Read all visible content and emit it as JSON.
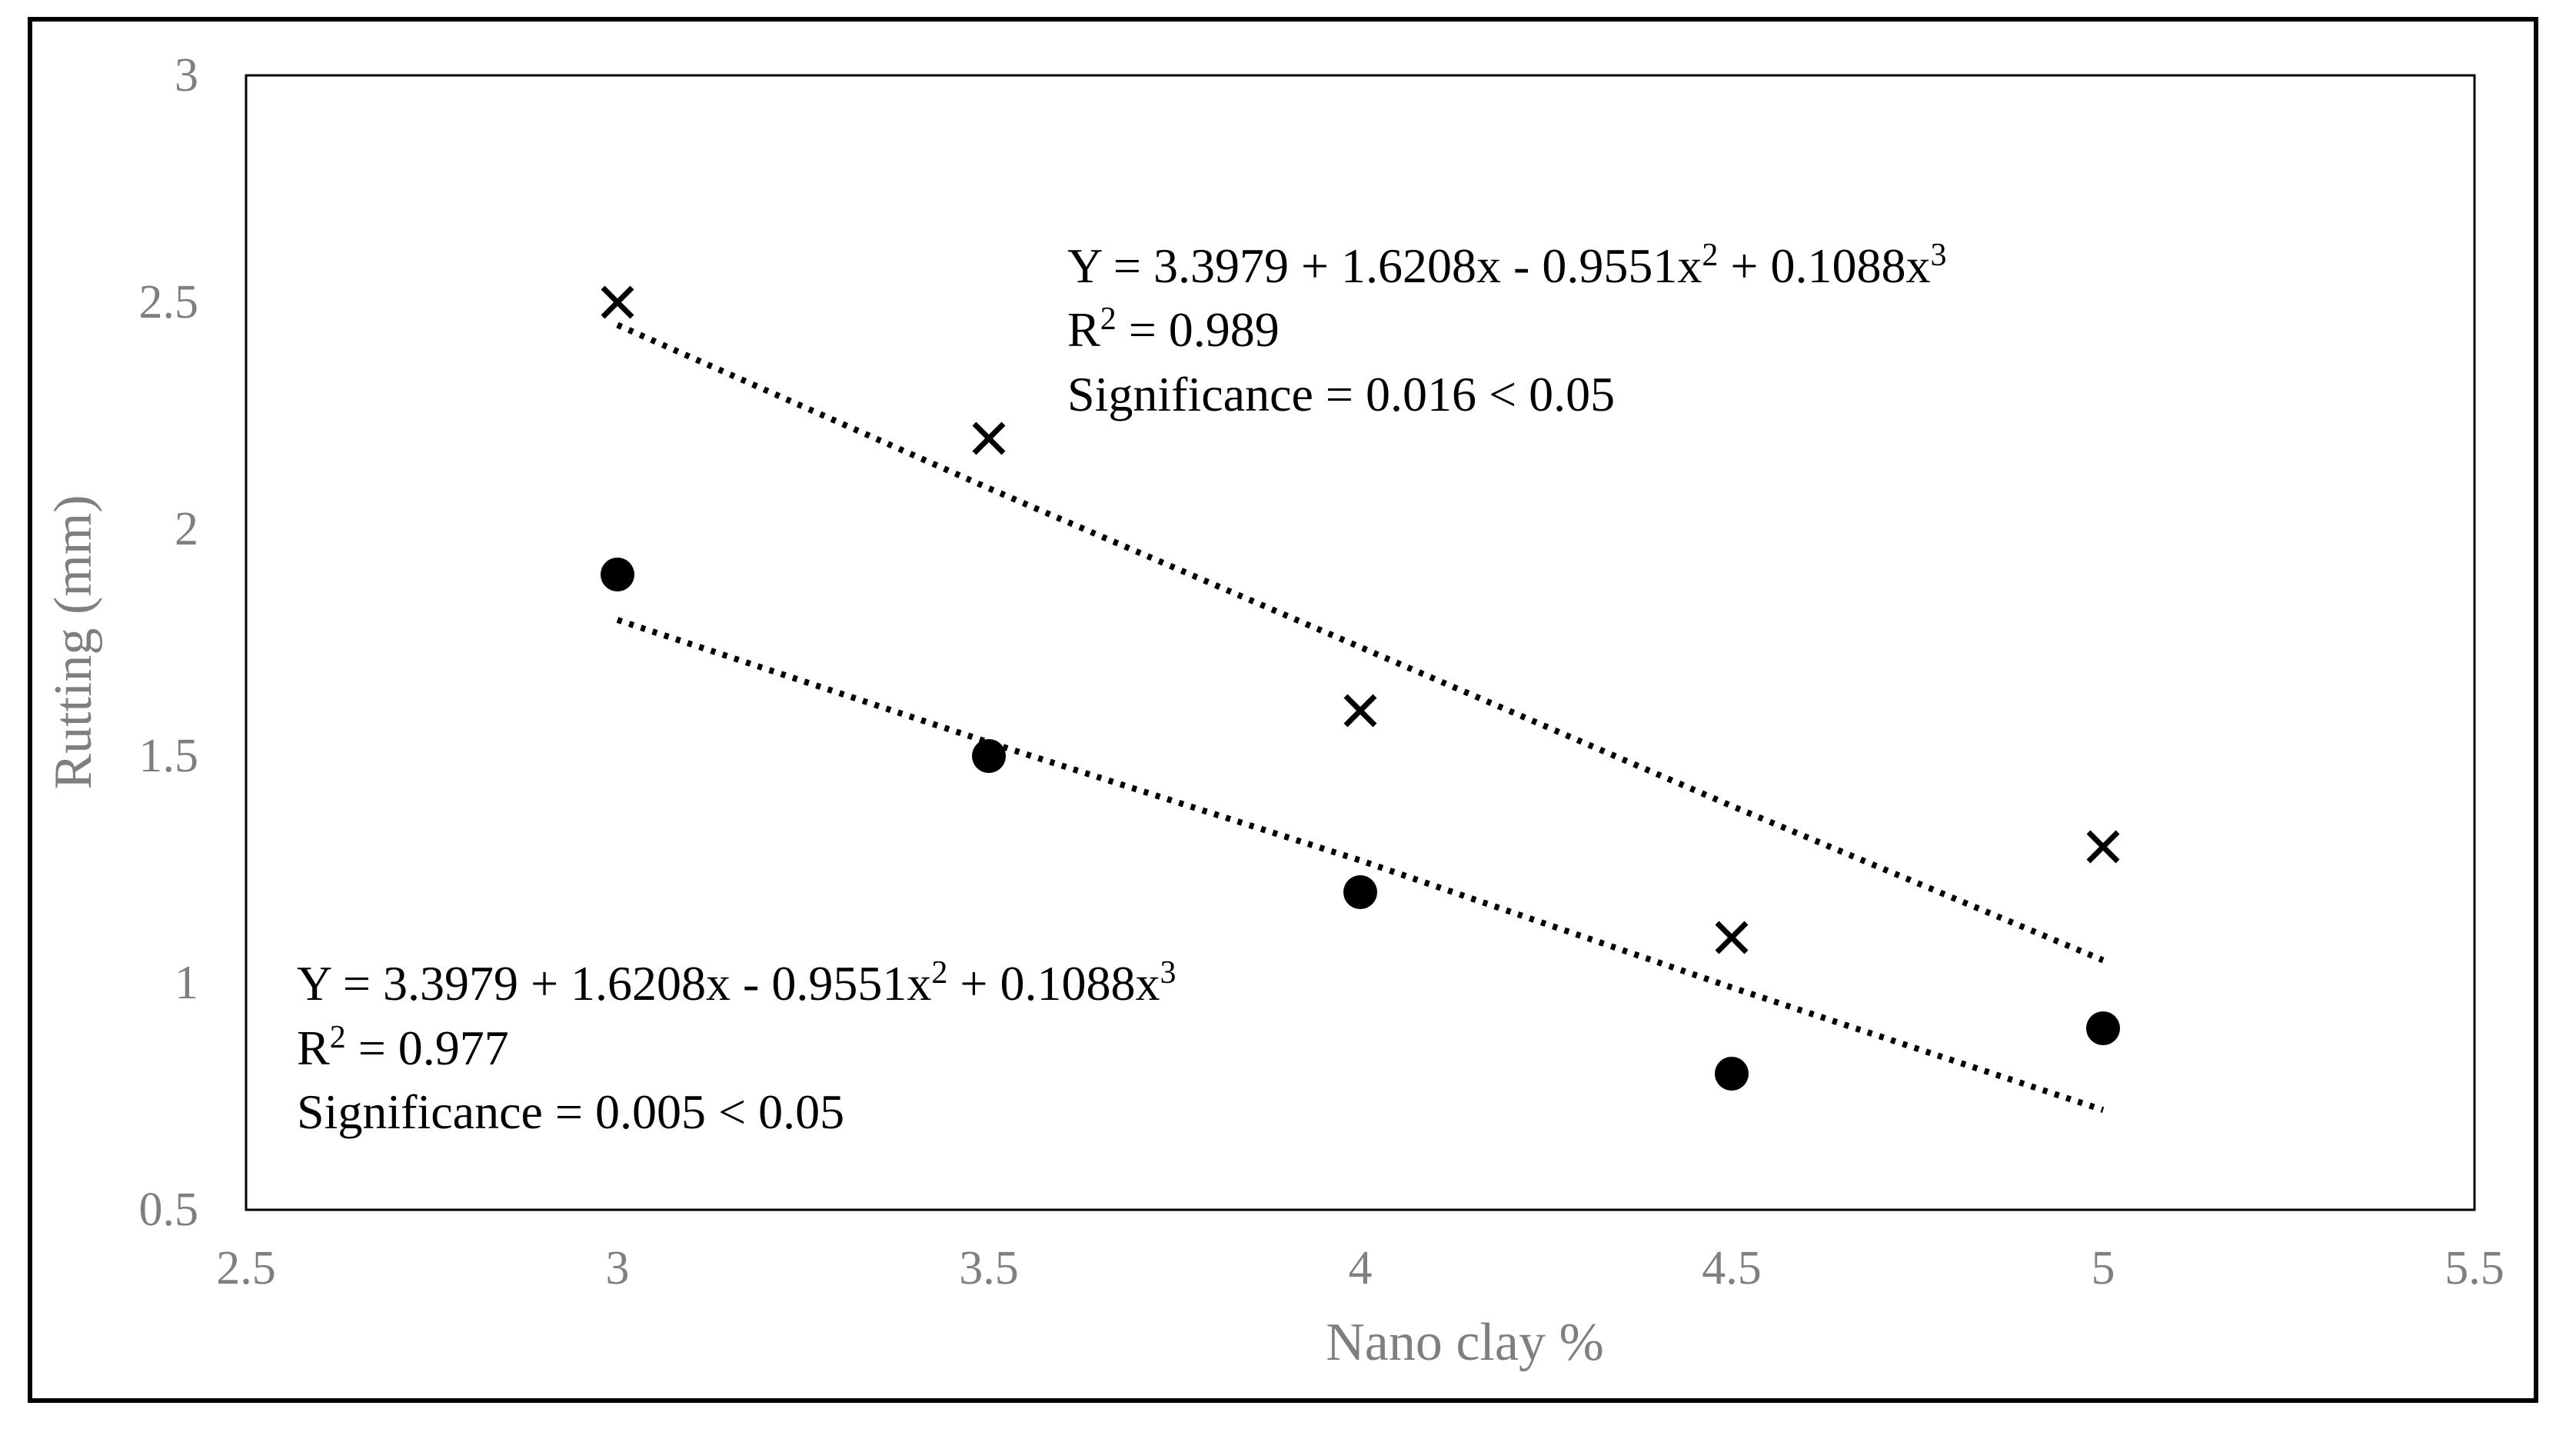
{
  "chart_data": {
    "type": "scatter",
    "title": "",
    "xlabel": "Nano clay %",
    "ylabel": "Rutting (mm)",
    "xlim": [
      2.5,
      5.5
    ],
    "ylim": [
      0.5,
      3
    ],
    "x_ticks": [
      "2.5",
      "3",
      "3.5",
      "4",
      "4.5",
      "5",
      "5.5"
    ],
    "y_ticks": [
      "0.5",
      "1",
      "1.5",
      "2",
      "2.5",
      "3"
    ],
    "grid": false,
    "legend": "none",
    "series": [
      {
        "marker": "x",
        "color": "#000000",
        "x": [
          3,
          3.5,
          4,
          4.5,
          5
        ],
        "y": [
          2.5,
          2.2,
          1.6,
          1.1,
          1.3
        ],
        "trendline": {
          "style": "dotted",
          "x": [
            3,
            3.5,
            4,
            4.5,
            5
          ],
          "y": [
            2.45,
            2.09,
            1.74,
            1.39,
            1.05
          ]
        }
      },
      {
        "marker": "circle",
        "color": "#000000",
        "x": [
          3,
          3.5,
          4,
          4.5,
          5
        ],
        "y": [
          1.9,
          1.5,
          1.2,
          0.8,
          0.9
        ],
        "trendline": {
          "style": "dotted",
          "x": [
            3,
            3.5,
            4,
            4.5,
            5
          ],
          "y": [
            1.8,
            1.53,
            1.27,
            0.99,
            0.72
          ]
        }
      }
    ],
    "annotations": [
      {
        "anchor": "upper",
        "equation": "Y = 3.3979 + 1.6208x - 0.9551x",
        "sup1": "2",
        "mid": " + 0.1088x",
        "sup2": "3",
        "r2_label": "R",
        "r2_sup": "2",
        "r2_value": " = 0.989",
        "significance": "Significance = 0.016 < 0.05"
      },
      {
        "anchor": "lower",
        "equation": "Y = 3.3979 + 1.6208x - 0.9551x",
        "sup1": "2",
        "mid": " + 0.1088x",
        "sup2": "3",
        "r2_label": "R",
        "r2_sup": "2",
        "r2_value": " = 0.977",
        "significance": "Significance = 0.005 < 0.05"
      }
    ]
  }
}
